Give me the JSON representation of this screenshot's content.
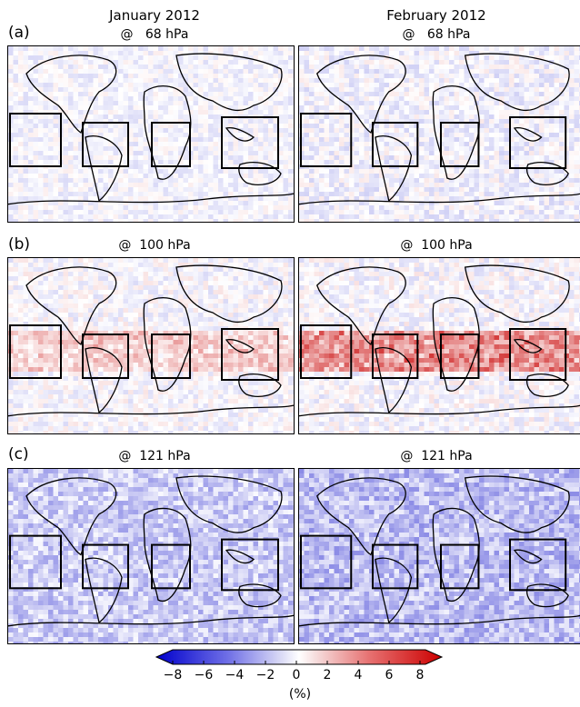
{
  "columns": [
    {
      "title_line1": "January 2012",
      "pressure": "@   68 hPa"
    },
    {
      "title_line1": "February 2012",
      "pressure": "@   68 hPa"
    }
  ],
  "rows": [
    {
      "label": "(a)",
      "pressures": [
        "@   68 hPa",
        "@   68 hPa"
      ]
    },
    {
      "label": "(b)",
      "pressures": [
        "@  100 hPa",
        "@  100 hPa"
      ]
    },
    {
      "label": "(c)",
      "pressures": [
        "@  121 hPa",
        "@  121 hPa"
      ]
    }
  ],
  "colorbar": {
    "ticks": [
      "−8",
      "−6",
      "−4",
      "−2",
      "0",
      "2",
      "4",
      "6",
      "8"
    ],
    "tick_values": [
      -8,
      -6,
      -4,
      -2,
      0,
      2,
      4,
      6,
      8
    ],
    "unit": "(%)",
    "min_color": "#0000cc",
    "mid_color": "#ffffff",
    "max_color": "#cc0000"
  },
  "chart_data": {
    "type": "heatmap",
    "description_units": "percent",
    "colorbar_range": [
      -8,
      8
    ],
    "layout": "3 rows x 2 columns of global maps",
    "panels": [
      {
        "row": "(a)",
        "column": "January 2012",
        "pressure_hPa": 68,
        "dominant_sign": "near zero, slight negative"
      },
      {
        "row": "(a)",
        "column": "February 2012",
        "pressure_hPa": 68,
        "dominant_sign": "near zero, slight negative"
      },
      {
        "row": "(b)",
        "column": "January 2012",
        "pressure_hPa": 100,
        "dominant_sign": "near zero with positive tropical patches"
      },
      {
        "row": "(b)",
        "column": "February 2012",
        "pressure_hPa": 100,
        "dominant_sign": "positive in tropics"
      },
      {
        "row": "(c)",
        "column": "January 2012",
        "pressure_hPa": 121,
        "dominant_sign": "negative"
      },
      {
        "row": "(c)",
        "column": "February 2012",
        "pressure_hPa": 121,
        "dominant_sign": "negative"
      }
    ],
    "regions_boxed": [
      "Central Pacific",
      "South America",
      "Africa",
      "Maritime Continent"
    ]
  }
}
